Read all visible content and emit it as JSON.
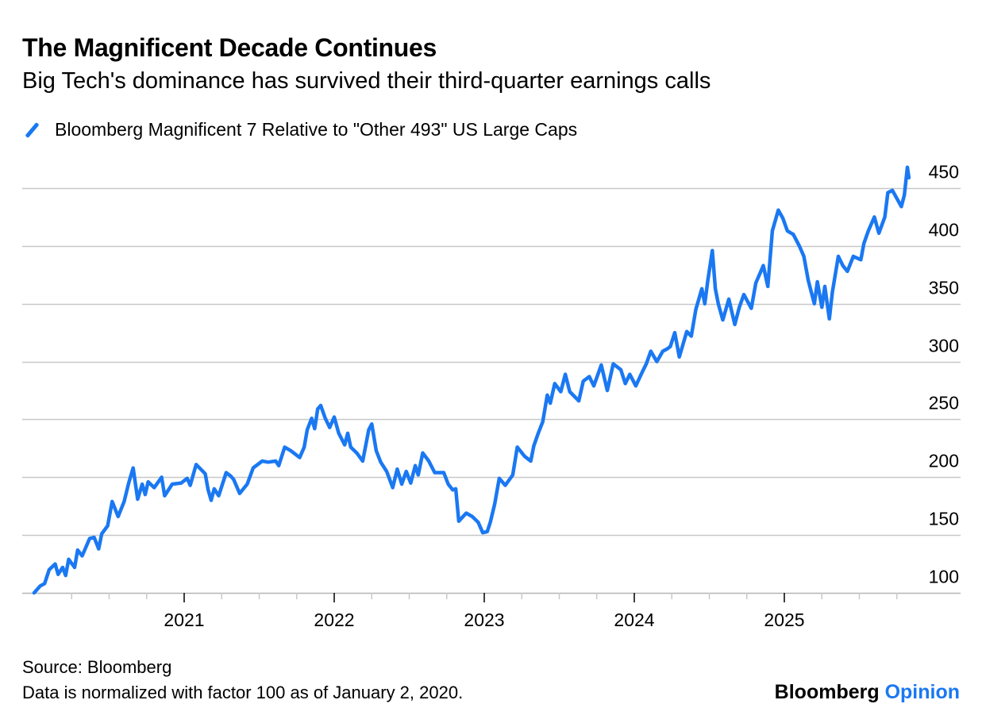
{
  "chart_data": {
    "type": "line",
    "title": "The Magnificent Decade Continues",
    "subtitle": "Big Tech's dominance has survived their third-quarter earnings calls",
    "xlabel": "",
    "ylabel": "",
    "ylim": [
      100,
      472
    ],
    "xlim": [
      2020,
      2025.9
    ],
    "grid": true,
    "y_axis_side": "right",
    "yticks": [
      100,
      150,
      200,
      250,
      300,
      350,
      400,
      450
    ],
    "xticks": [
      2021,
      2022,
      2023,
      2024,
      2025
    ],
    "xtick_labels": [
      "2021",
      "2022",
      "2023",
      "2024",
      "2025"
    ],
    "legend_position": "top-left",
    "series": [
      {
        "name": "Bloomberg Magnificent 7 Relative to \"Other 493\" US Large Caps",
        "color": "#1a78f2",
        "points": [
          [
            2020.0,
            100
          ],
          [
            2020.04,
            106
          ],
          [
            2020.07,
            108
          ],
          [
            2020.1,
            120
          ],
          [
            2020.14,
            125
          ],
          [
            2020.16,
            116
          ],
          [
            2020.19,
            122
          ],
          [
            2020.21,
            115
          ],
          [
            2020.23,
            129
          ],
          [
            2020.27,
            122
          ],
          [
            2020.29,
            137
          ],
          [
            2020.32,
            132
          ],
          [
            2020.37,
            147
          ],
          [
            2020.4,
            148
          ],
          [
            2020.43,
            138
          ],
          [
            2020.45,
            151
          ],
          [
            2020.49,
            158
          ],
          [
            2020.52,
            179
          ],
          [
            2020.56,
            166
          ],
          [
            2020.6,
            179
          ],
          [
            2020.63,
            195
          ],
          [
            2020.66,
            208
          ],
          [
            2020.69,
            181
          ],
          [
            2020.72,
            194
          ],
          [
            2020.74,
            185
          ],
          [
            2020.76,
            196
          ],
          [
            2020.8,
            191
          ],
          [
            2020.85,
            200
          ],
          [
            2020.87,
            184
          ],
          [
            2020.92,
            194
          ],
          [
            2020.98,
            195
          ],
          [
            2021.02,
            199
          ],
          [
            2021.04,
            193
          ],
          [
            2021.08,
            211
          ],
          [
            2021.11,
            207
          ],
          [
            2021.14,
            203
          ],
          [
            2021.16,
            189
          ],
          [
            2021.18,
            180
          ],
          [
            2021.2,
            190
          ],
          [
            2021.23,
            184
          ],
          [
            2021.28,
            204
          ],
          [
            2021.31,
            201
          ],
          [
            2021.33,
            198
          ],
          [
            2021.37,
            186
          ],
          [
            2021.42,
            194
          ],
          [
            2021.46,
            208
          ],
          [
            2021.52,
            214
          ],
          [
            2021.56,
            213
          ],
          [
            2021.61,
            214
          ],
          [
            2021.63,
            210
          ],
          [
            2021.67,
            226
          ],
          [
            2021.71,
            223
          ],
          [
            2021.77,
            217
          ],
          [
            2021.8,
            226
          ],
          [
            2021.82,
            241
          ],
          [
            2021.85,
            251
          ],
          [
            2021.87,
            242
          ],
          [
            2021.89,
            259
          ],
          [
            2021.91,
            262
          ],
          [
            2021.94,
            251
          ],
          [
            2021.97,
            243
          ],
          [
            2022.0,
            252
          ],
          [
            2022.03,
            238
          ],
          [
            2022.07,
            228
          ],
          [
            2022.09,
            238
          ],
          [
            2022.11,
            226
          ],
          [
            2022.15,
            221
          ],
          [
            2022.19,
            214
          ],
          [
            2022.23,
            241
          ],
          [
            2022.25,
            246
          ],
          [
            2022.28,
            223
          ],
          [
            2022.31,
            213
          ],
          [
            2022.35,
            205
          ],
          [
            2022.39,
            191
          ],
          [
            2022.42,
            207
          ],
          [
            2022.45,
            194
          ],
          [
            2022.48,
            205
          ],
          [
            2022.51,
            195
          ],
          [
            2022.54,
            210
          ],
          [
            2022.56,
            202
          ],
          [
            2022.59,
            221
          ],
          [
            2022.63,
            214
          ],
          [
            2022.67,
            204
          ],
          [
            2022.73,
            204
          ],
          [
            2022.76,
            194
          ],
          [
            2022.79,
            189
          ],
          [
            2022.81,
            190
          ],
          [
            2022.83,
            162
          ],
          [
            2022.88,
            169
          ],
          [
            2022.92,
            166
          ],
          [
            2022.96,
            161
          ],
          [
            2022.99,
            152
          ],
          [
            2023.02,
            153
          ],
          [
            2023.04,
            161
          ],
          [
            2023.07,
            177
          ],
          [
            2023.1,
            199
          ],
          [
            2023.14,
            193
          ],
          [
            2023.19,
            202
          ],
          [
            2023.22,
            226
          ],
          [
            2023.27,
            218
          ],
          [
            2023.31,
            214
          ],
          [
            2023.33,
            227
          ],
          [
            2023.36,
            238
          ],
          [
            2023.39,
            248
          ],
          [
            2023.42,
            271
          ],
          [
            2023.44,
            264
          ],
          [
            2023.47,
            281
          ],
          [
            2023.51,
            274
          ],
          [
            2023.54,
            289
          ],
          [
            2023.57,
            274
          ],
          [
            2023.63,
            266
          ],
          [
            2023.66,
            283
          ],
          [
            2023.7,
            287
          ],
          [
            2023.73,
            279
          ],
          [
            2023.78,
            297
          ],
          [
            2023.82,
            275
          ],
          [
            2023.86,
            298
          ],
          [
            2023.91,
            293
          ],
          [
            2023.94,
            281
          ],
          [
            2023.97,
            289
          ],
          [
            2024.01,
            279
          ],
          [
            2024.05,
            290
          ],
          [
            2024.08,
            298
          ],
          [
            2024.11,
            309
          ],
          [
            2024.15,
            300
          ],
          [
            2024.19,
            309
          ],
          [
            2024.22,
            311
          ],
          [
            2024.24,
            313
          ],
          [
            2024.27,
            325
          ],
          [
            2024.3,
            304
          ],
          [
            2024.35,
            326
          ],
          [
            2024.38,
            322
          ],
          [
            2024.41,
            345
          ],
          [
            2024.45,
            363
          ],
          [
            2024.47,
            350
          ],
          [
            2024.49,
            370
          ],
          [
            2024.52,
            396
          ],
          [
            2024.54,
            363
          ],
          [
            2024.56,
            350
          ],
          [
            2024.59,
            336
          ],
          [
            2024.63,
            354
          ],
          [
            2024.67,
            332
          ],
          [
            2024.7,
            347
          ],
          [
            2024.73,
            358
          ],
          [
            2024.78,
            346
          ],
          [
            2024.81,
            368
          ],
          [
            2024.84,
            377
          ],
          [
            2024.86,
            383
          ],
          [
            2024.89,
            365
          ],
          [
            2024.92,
            413
          ],
          [
            2024.96,
            431
          ],
          [
            2024.99,
            424
          ],
          [
            2025.02,
            413
          ],
          [
            2025.06,
            410
          ],
          [
            2025.1,
            400
          ],
          [
            2025.13,
            391
          ],
          [
            2025.16,
            370
          ],
          [
            2025.2,
            350
          ],
          [
            2025.22,
            369
          ],
          [
            2025.25,
            347
          ],
          [
            2025.27,
            365
          ],
          [
            2025.3,
            337
          ],
          [
            2025.32,
            360
          ],
          [
            2025.36,
            391
          ],
          [
            2025.39,
            383
          ],
          [
            2025.42,
            378
          ],
          [
            2025.46,
            391
          ],
          [
            2025.51,
            388
          ],
          [
            2025.53,
            402
          ],
          [
            2025.56,
            413
          ],
          [
            2025.6,
            425
          ],
          [
            2025.63,
            411
          ],
          [
            2025.67,
            425
          ],
          [
            2025.69,
            446
          ],
          [
            2025.72,
            448
          ],
          [
            2025.75,
            441
          ],
          [
            2025.78,
            434
          ],
          [
            2025.8,
            444
          ],
          [
            2025.82,
            468
          ],
          [
            2025.83,
            459
          ]
        ]
      }
    ]
  },
  "footer": {
    "source": "Source: Bloomberg",
    "note": "Data is normalized with factor 100 as of January 2, 2020.",
    "brand_main": "Bloomberg",
    "brand_accent": "Opinion"
  }
}
